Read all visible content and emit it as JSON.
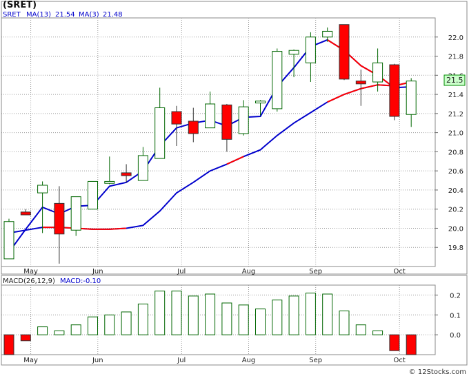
{
  "chart_data": [
    {
      "type": "candlestick",
      "title": "(SRET)",
      "ticker_label": "SRET",
      "legend": [
        {
          "label": "MA(13)",
          "value": "21.54",
          "color": "#0000cc"
        },
        {
          "label": "MA(3)",
          "value": "21.48",
          "color": "#0000cc"
        }
      ],
      "last_price_label": "21.5",
      "up_color": "#006600",
      "down_color": "#ff0000",
      "ylim": [
        19.6,
        22.2
      ],
      "y_ticks": [
        "22.0",
        "21.8",
        "21.6",
        "21.4",
        "21.2",
        "21.0",
        "20.8",
        "20.6",
        "20.4",
        "20.2",
        "20.0",
        "19.8"
      ],
      "x_ticks": [
        {
          "label": "May",
          "week": 1.3
        },
        {
          "label": "Jun",
          "week": 5.3
        },
        {
          "label": "Jul",
          "week": 10.3
        },
        {
          "label": "Aug",
          "week": 14.3
        },
        {
          "label": "Sep",
          "week": 18.3
        },
        {
          "label": "Oct",
          "week": 23.3
        }
      ],
      "candles": [
        {
          "o": 19.68,
          "h": 20.1,
          "l": 19.68,
          "c": 20.07
        },
        {
          "o": 20.17,
          "h": 20.2,
          "l": 20.14,
          "c": 20.14
        },
        {
          "o": 20.37,
          "h": 20.49,
          "l": 19.95,
          "c": 20.45
        },
        {
          "o": 20.26,
          "h": 20.44,
          "l": 19.63,
          "c": 19.94
        },
        {
          "o": 19.98,
          "h": 20.33,
          "l": 19.92,
          "c": 20.33
        },
        {
          "o": 20.2,
          "h": 20.49,
          "l": 20.2,
          "c": 20.49
        },
        {
          "o": 20.47,
          "h": 20.75,
          "l": 20.46,
          "c": 20.49
        },
        {
          "o": 20.58,
          "h": 20.67,
          "l": 20.48,
          "c": 20.55
        },
        {
          "o": 20.5,
          "h": 20.85,
          "l": 20.5,
          "c": 20.76
        },
        {
          "o": 20.73,
          "h": 21.47,
          "l": 20.73,
          "c": 21.26
        },
        {
          "o": 21.22,
          "h": 21.28,
          "l": 20.86,
          "c": 21.09
        },
        {
          "o": 21.12,
          "h": 21.26,
          "l": 20.9,
          "c": 20.99
        },
        {
          "o": 21.05,
          "h": 21.43,
          "l": 21.05,
          "c": 21.3
        },
        {
          "o": 21.29,
          "h": 21.3,
          "l": 20.8,
          "c": 20.93
        },
        {
          "o": 20.99,
          "h": 21.34,
          "l": 20.97,
          "c": 21.27
        },
        {
          "o": 21.31,
          "h": 21.34,
          "l": 21.18,
          "c": 21.33
        },
        {
          "o": 21.25,
          "h": 21.88,
          "l": 21.22,
          "c": 21.85
        },
        {
          "o": 21.82,
          "h": 21.87,
          "l": 21.58,
          "c": 21.86
        },
        {
          "o": 21.73,
          "h": 22.05,
          "l": 21.53,
          "c": 22.0
        },
        {
          "o": 22.0,
          "h": 22.1,
          "l": 21.95,
          "c": 22.06
        },
        {
          "o": 22.13,
          "h": 22.13,
          "l": 21.55,
          "c": 21.56
        },
        {
          "o": 21.54,
          "h": 21.66,
          "l": 21.28,
          "c": 21.51
        },
        {
          "o": 21.53,
          "h": 21.88,
          "l": 21.43,
          "c": 21.73
        },
        {
          "o": 21.71,
          "h": 21.72,
          "l": 21.13,
          "c": 21.17
        },
        {
          "o": 21.19,
          "h": 21.57,
          "l": 21.06,
          "c": 21.54
        }
      ],
      "ma13_week_start": 0,
      "ma13": [
        19.95,
        19.98,
        20.01,
        20.01,
        20.0,
        19.99,
        19.99,
        20.0,
        20.03,
        20.18,
        20.37,
        20.48,
        20.6,
        20.67,
        20.75,
        20.82,
        20.97,
        21.1,
        21.21,
        21.32,
        21.4,
        21.46,
        21.5,
        21.49,
        21.53
      ],
      "ma3_week_start": 0,
      "ma3": [
        19.75,
        19.99,
        20.22,
        20.15,
        20.23,
        20.24,
        20.44,
        20.48,
        20.6,
        20.86,
        21.05,
        21.1,
        21.13,
        21.07,
        21.16,
        21.17,
        21.48,
        21.68,
        21.9,
        21.97,
        21.86,
        21.7,
        21.6,
        21.47,
        21.48
      ],
      "ma3_red_weeks": [
        [
          2,
          7
        ],
        [
          13,
          14
        ],
        [
          19,
          24
        ]
      ]
    },
    {
      "type": "bar",
      "title": "MACD(26,12,9)",
      "legend": [
        {
          "label": "MACD(26,12,9)",
          "color": "#222222"
        },
        {
          "label": "MACD:-0.10",
          "color": "#0000cc"
        }
      ],
      "ylim": [
        -0.1,
        0.25
      ],
      "y_ticks": [
        "0.2",
        "0.1",
        "0.0"
      ],
      "x_ticks": [
        "May",
        "Jun",
        "Jul",
        "Aug",
        "Sep",
        "Oct"
      ],
      "values": [
        -0.1,
        -0.03,
        0.04,
        0.02,
        0.05,
        0.09,
        0.1,
        0.115,
        0.155,
        0.22,
        0.22,
        0.195,
        0.205,
        0.16,
        0.15,
        0.13,
        0.175,
        0.195,
        0.21,
        0.205,
        0.12,
        0.05,
        0.02,
        -0.08,
        -0.1
      ],
      "up_color": "#006600",
      "down_color": "#ff0000"
    }
  ],
  "watermark": "© 12Stocks.com"
}
